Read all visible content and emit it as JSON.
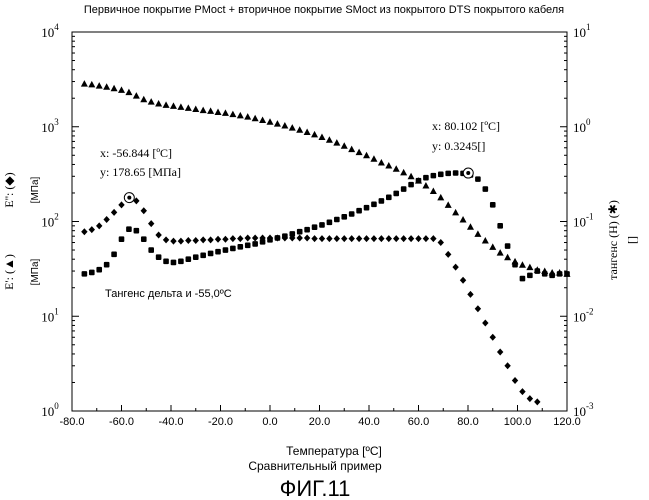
{
  "chart_data": {
    "type": "scatter",
    "title": "Первичное покрытие PMoct + вторичное покрытие SMoct из покрытого DTS покрытого кабеля",
    "xlabel": "Температура [ºC]",
    "subtitle": "Сравнительный пример",
    "figure_label": "ФИГ.11",
    "xlim": [
      -80,
      120
    ],
    "x_ticks": [
      "-80.0",
      "-60.0",
      "-40.0",
      "-20.0",
      "0.0",
      "20.0",
      "40.0",
      "60.0",
      "80.0",
      "100.0",
      "120.0"
    ],
    "x_tick_values": [
      -80,
      -60,
      -40,
      -20,
      0,
      20,
      40,
      60,
      80,
      100,
      120
    ],
    "y_left": {
      "scale": "log",
      "lim": [
        1,
        10000
      ],
      "ticks": [
        {
          "base": "10",
          "exp": "0",
          "value": 1
        },
        {
          "base": "10",
          "exp": "1",
          "value": 10
        },
        {
          "base": "10",
          "exp": "2",
          "value": 100
        },
        {
          "base": "10",
          "exp": "3",
          "value": 1000
        },
        {
          "base": "10",
          "exp": "4",
          "value": 10000
        }
      ],
      "label_loss": "E'': (◆)",
      "label_loss_unit": "[МПа]",
      "label_storage": "E': (▲)",
      "label_storage_unit": "[МПа]"
    },
    "y_right": {
      "scale": "log",
      "lim": [
        0.001,
        10
      ],
      "ticks": [
        {
          "base": "10",
          "exp": "1",
          "value": 10
        },
        {
          "base": "10",
          "exp": "0",
          "value": 1
        },
        {
          "base": "10",
          "exp": "-1",
          "value": 0.1
        },
        {
          "base": "10",
          "exp": "-2",
          "value": 0.01
        },
        {
          "base": "10",
          "exp": "-3",
          "value": 0.001
        }
      ],
      "label": "тангенс (H) (✱)",
      "label_unit": "[]"
    },
    "annotation_text": "Тангенс дельта и -55,0ºC",
    "markers": [
      {
        "series": "loss",
        "x": -56.844,
        "y": 178.65,
        "line1": "x: -56.844 [ºC]",
        "line2": "y: 178.65 [МПа]"
      },
      {
        "series": "tan_delta",
        "x": 80.102,
        "y": 0.3245,
        "line1": "x: 80.102 [ºC]",
        "line2": "y: 0.3245[]"
      }
    ],
    "series": [
      {
        "name": "E'",
        "key": "storage",
        "marker": "triangle",
        "axis": "left",
        "x": [
          -75,
          -72,
          -69,
          -66,
          -63,
          -60,
          -57,
          -54,
          -51,
          -48,
          -45,
          -42,
          -39,
          -36,
          -33,
          -30,
          -27,
          -24,
          -21,
          -18,
          -15,
          -12,
          -9,
          -6,
          -3,
          0,
          3,
          6,
          9,
          12,
          15,
          18,
          21,
          24,
          27,
          30,
          33,
          36,
          39,
          42,
          45,
          48,
          51,
          54,
          57,
          60,
          63,
          66,
          69,
          72,
          75,
          78,
          81,
          84,
          87,
          90,
          93,
          96,
          99,
          102,
          105,
          108,
          111,
          114,
          117,
          120
        ],
        "y": [
          2850,
          2800,
          2720,
          2640,
          2550,
          2450,
          2320,
          2130,
          1950,
          1840,
          1760,
          1700,
          1660,
          1620,
          1580,
          1540,
          1500,
          1470,
          1430,
          1400,
          1360,
          1320,
          1280,
          1230,
          1180,
          1130,
          1080,
          1030,
          980,
          930,
          880,
          830,
          780,
          730,
          680,
          630,
          580,
          540,
          500,
          460,
          420,
          390,
          360,
          330,
          300,
          270,
          240,
          210,
          180,
          150,
          125,
          105,
          88,
          74,
          63,
          54,
          47,
          42,
          38,
          35,
          33,
          31,
          30,
          29,
          29,
          28
        ]
      },
      {
        "name": "E''",
        "key": "loss",
        "marker": "diamond",
        "axis": "left",
        "x": [
          -75,
          -72,
          -69,
          -66,
          -63,
          -60,
          -57,
          -54,
          -51,
          -48,
          -45,
          -42,
          -39,
          -36,
          -33,
          -30,
          -27,
          -24,
          -21,
          -18,
          -15,
          -12,
          -9,
          -6,
          -3,
          0,
          3,
          6,
          9,
          12,
          15,
          18,
          21,
          24,
          27,
          30,
          33,
          36,
          39,
          42,
          45,
          48,
          51,
          54,
          57,
          60,
          63,
          66,
          69,
          72,
          75,
          78,
          81,
          84,
          87,
          90,
          93,
          96,
          99,
          102,
          105,
          108
        ],
        "y": [
          78,
          82,
          90,
          105,
          125,
          150,
          176,
          165,
          130,
          95,
          72,
          64,
          62,
          62,
          63,
          63,
          64,
          64,
          65,
          65,
          66,
          66,
          67,
          67,
          67,
          67,
          67,
          67,
          67,
          67,
          67,
          66,
          66,
          66,
          66,
          66,
          66,
          66,
          66,
          66,
          66,
          66,
          66,
          66,
          66,
          66,
          66,
          66,
          60,
          45,
          33,
          24,
          17,
          12,
          8.5,
          6,
          4.2,
          3,
          2.1,
          1.6,
          1.35,
          1.25
        ]
      },
      {
        "name": "tan δ",
        "key": "tan_delta",
        "marker": "square",
        "axis": "right",
        "x": [
          -75,
          -72,
          -69,
          -66,
          -63,
          -60,
          -57,
          -54,
          -51,
          -48,
          -45,
          -42,
          -39,
          -36,
          -33,
          -30,
          -27,
          -24,
          -21,
          -18,
          -15,
          -12,
          -9,
          -6,
          -3,
          0,
          3,
          6,
          9,
          12,
          15,
          18,
          21,
          24,
          27,
          30,
          33,
          36,
          39,
          42,
          45,
          48,
          51,
          54,
          57,
          60,
          63,
          66,
          69,
          72,
          75,
          78,
          81,
          84,
          87,
          90,
          93,
          96,
          99,
          102,
          105,
          108,
          111,
          114,
          117,
          120
        ],
        "y": [
          0.028,
          0.029,
          0.031,
          0.035,
          0.045,
          0.065,
          0.083,
          0.08,
          0.065,
          0.05,
          0.042,
          0.038,
          0.037,
          0.038,
          0.04,
          0.042,
          0.044,
          0.046,
          0.048,
          0.05,
          0.052,
          0.054,
          0.056,
          0.058,
          0.061,
          0.064,
          0.067,
          0.07,
          0.074,
          0.078,
          0.082,
          0.087,
          0.092,
          0.098,
          0.105,
          0.112,
          0.12,
          0.13,
          0.14,
          0.152,
          0.165,
          0.18,
          0.198,
          0.22,
          0.245,
          0.27,
          0.29,
          0.305,
          0.315,
          0.322,
          0.325,
          0.322,
          0.31,
          0.28,
          0.22,
          0.15,
          0.09,
          0.055,
          0.035,
          0.025,
          0.027,
          0.03,
          0.028,
          0.027,
          0.028,
          0.028
        ]
      }
    ],
    "grid": false,
    "legend": "none"
  }
}
